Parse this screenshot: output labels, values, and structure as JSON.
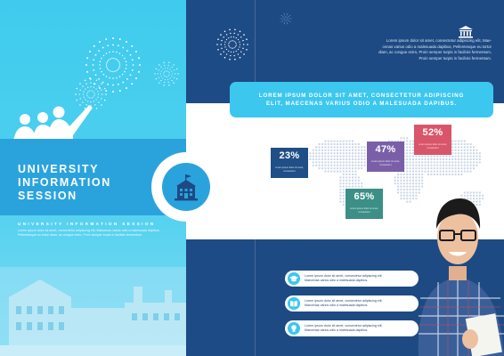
{
  "cover": {
    "title_lines": [
      "UNIVERSITY",
      "INFORMATION",
      "SESSION"
    ],
    "subtitle": "UNIVERSITY INFORMATION SESSION",
    "body_lines": [
      "Lorem ipsum dolor sit amet, consectetur adipiscing elit, Maecenas varius odio a malesuada dapibus.",
      "Pellentesque eu tortor diam, ac congue enim, Proin semper turpis in facilisis fermentum."
    ]
  },
  "intro": {
    "lines": [
      "Lorem ipsum dolor sit amet, consectetur adipiscing elit, Mae-",
      "cenas varius odio a malesuada dapibus, Pellentesque eu tortor",
      "diam, ac congue enim, Proin semper turpis in facilisis fermentum,",
      "Proin semper turpis in facilisis fermentum."
    ]
  },
  "headline": {
    "lines": [
      "LOREM IPSUM DOLOR SIT AMET, CONSECTETUR ADIPISCING",
      "ELIT, MAECENAS VARIUS ODIO A MALESUADA DAPIBUS."
    ]
  },
  "stats": [
    {
      "value": "23%",
      "caption": "Lorem ipsum dolor sit amet, consectetur",
      "color": "#1f4f86"
    },
    {
      "value": "47%",
      "caption": "Lorem ipsum dolor sit amet, consectetur",
      "color": "#7a5fa8"
    },
    {
      "value": "52%",
      "caption": "Lorem ipsum dolor sit amet, consectetur",
      "color": "#d9556a"
    },
    {
      "value": "65%",
      "caption": "Lorem ipsum dolor sit amet, consectetur",
      "color": "#3b8f86"
    }
  ],
  "rows": [
    {
      "icon": "graduation-icon",
      "line1": "Lorem ipsum dolor sit amet, consectetur adipiscing elit,",
      "line2": "Maecenas varius odio a malesuada dapibus."
    },
    {
      "icon": "book-icon",
      "line1": "Lorem ipsum dolor sit amet, consectetur adipiscing elit,",
      "line2": "Maecenas varius odio a malesuada dapibus."
    },
    {
      "icon": "lightbulb-icon",
      "line1": "Lorem ipsum dolor sit amet, consectetur adipiscing elit,",
      "line2": "Maecenas varius odio a malesuada dapibus."
    }
  ],
  "colors": {
    "cyan": "#3cc7ef",
    "navy": "#1e4a83",
    "blue": "#2aa3dd"
  }
}
